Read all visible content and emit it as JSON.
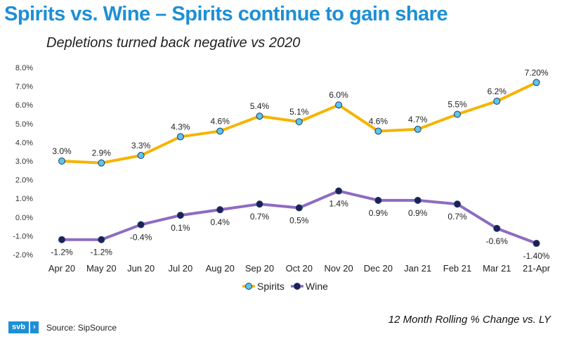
{
  "title": "Spirits vs. Wine – Spirits continue to gain share",
  "subtitle": "Depletions turned back negative vs 2020",
  "note": "12 Month Rolling % Change vs. LY",
  "logo_text": "svb",
  "logo_chevron": "›",
  "source": "Source: SipSource",
  "chart_data": {
    "type": "line",
    "title": "Spirits vs. Wine – Spirits continue to gain share",
    "xlabel": "",
    "ylabel": "",
    "ylim": [
      -2.0,
      8.0
    ],
    "yticks": [
      "-2.0%",
      "-1.0%",
      "0.0%",
      "1.0%",
      "2.0%",
      "3.0%",
      "4.0%",
      "5.0%",
      "6.0%",
      "7.0%",
      "8.0%"
    ],
    "categories": [
      "Apr 20",
      "May 20",
      "Jun 20",
      "Jul 20",
      "Aug 20",
      "Sep 20",
      "Oct 20",
      "Nov 20",
      "Dec 20",
      "Jan 21",
      "Feb 21",
      "Mar 21",
      "21-Apr"
    ],
    "legend_position": "bottom-center",
    "series": [
      {
        "name": "Spirits",
        "color": "#f5b400",
        "marker_color": "#5fc4ea",
        "label_position": "above",
        "values": [
          3.0,
          2.9,
          3.3,
          4.3,
          4.6,
          5.4,
          5.1,
          6.0,
          4.6,
          4.7,
          5.5,
          6.2,
          7.2
        ],
        "labels": [
          "3.0%",
          "2.9%",
          "3.3%",
          "4.3%",
          "4.6%",
          "5.4%",
          "5.1%",
          "6.0%",
          "4.6%",
          "4.7%",
          "5.5%",
          "6.2%",
          "7.20%"
        ]
      },
      {
        "name": "Wine",
        "color": "#8e6bc2",
        "marker_color": "#1f1f5c",
        "label_position": "below",
        "values": [
          -1.2,
          -1.2,
          -0.4,
          0.1,
          0.4,
          0.7,
          0.5,
          1.4,
          0.9,
          0.9,
          0.7,
          -0.6,
          -1.4
        ],
        "labels": [
          "-1.2%",
          "-1.2%",
          "-0.4%",
          "0.1%",
          "0.4%",
          "0.7%",
          "0.5%",
          "1.4%",
          "0.9%",
          "0.9%",
          "0.7%",
          "-0.6%",
          "-1.40%"
        ]
      }
    ]
  }
}
